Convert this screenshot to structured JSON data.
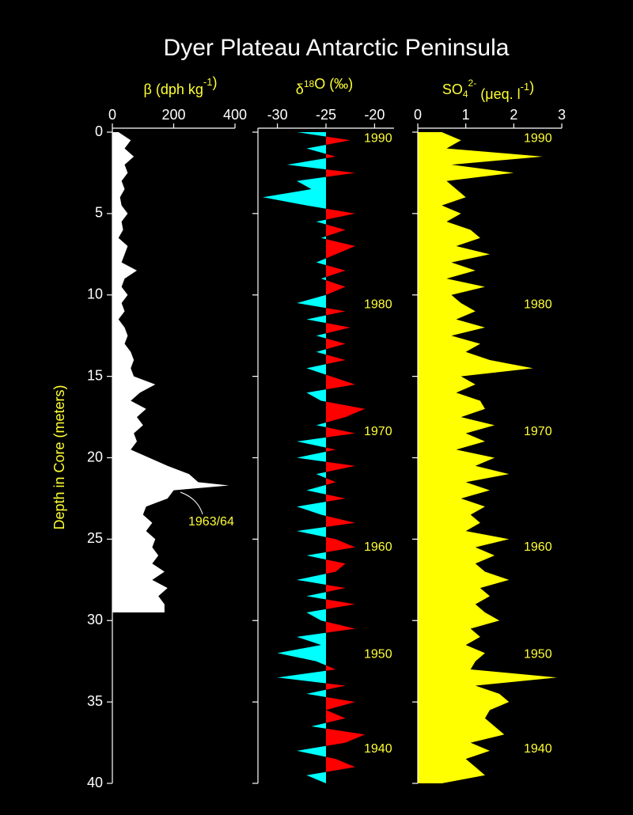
{
  "title": "Dyer Plateau Antarctic Peninsula",
  "chart_data": [
    {
      "type": "area",
      "orientation": "horizontal",
      "xlabel": [
        "β  (dph  kg",
        "-1",
        ")"
      ],
      "ylabel": "Depth in Core (meters)",
      "annotation": "1963/64",
      "xlim": [
        0,
        400
      ],
      "xticks": [
        0,
        200,
        400
      ],
      "ylim": [
        0,
        40
      ],
      "yticks": [
        0,
        5,
        10,
        15,
        20,
        25,
        30,
        35,
        40
      ],
      "color": "#ffffff",
      "y": [
        0,
        0.5,
        1,
        1.5,
        2,
        2.5,
        3,
        3.5,
        4,
        4.5,
        5,
        5.5,
        6,
        6.5,
        7,
        7.5,
        8,
        8.5,
        9,
        9.5,
        10,
        10.5,
        11,
        11.5,
        12,
        12.5,
        13,
        13.5,
        14,
        14.5,
        15,
        15.5,
        16,
        16.5,
        17,
        17.5,
        18,
        18.5,
        19,
        19.5,
        20,
        20.5,
        21,
        21.5,
        21.7,
        22,
        22.5,
        23,
        23.5,
        24,
        24.5,
        25,
        25.5,
        26,
        26.5,
        27,
        27.5,
        28,
        28.5,
        29,
        29.5
      ],
      "values": [
        20,
        60,
        40,
        70,
        40,
        50,
        30,
        40,
        25,
        30,
        50,
        30,
        35,
        20,
        50,
        40,
        30,
        80,
        40,
        30,
        50,
        30,
        40,
        20,
        40,
        50,
        40,
        60,
        70,
        60,
        70,
        140,
        90,
        60,
        110,
        80,
        100,
        70,
        80,
        60,
        120,
        180,
        250,
        280,
        380,
        200,
        180,
        110,
        100,
        130,
        110,
        140,
        130,
        150,
        130,
        170,
        130,
        180,
        150,
        170,
        170
      ]
    },
    {
      "type": "area",
      "orientation": "horizontal",
      "xlabel": [
        "δ",
        "18",
        "O (‰)"
      ],
      "xlim": [
        -32,
        -18
      ],
      "xticks": [
        -30,
        -25,
        -20
      ],
      "baseline": -25,
      "color_below": "#00ffff",
      "color_above": "#ff0000",
      "year_labels": [
        {
          "value": 0.4,
          "label": "1990"
        },
        {
          "value": 10.6,
          "label": "1980"
        },
        {
          "value": 18.4,
          "label": "1970"
        },
        {
          "value": 25.5,
          "label": "1960"
        },
        {
          "value": 32.1,
          "label": "1950"
        },
        {
          "value": 37.9,
          "label": "1940"
        }
      ],
      "y": [
        0,
        0.5,
        1,
        1.5,
        2,
        2.5,
        3,
        3.5,
        4,
        4.5,
        5,
        5.5,
        6,
        6.5,
        7,
        7.5,
        8,
        8.5,
        9,
        9.5,
        10,
        10.5,
        11,
        11.5,
        12,
        12.5,
        13,
        13.5,
        14,
        14.5,
        15,
        15.5,
        16,
        16.5,
        17,
        17.5,
        18,
        18.5,
        19,
        19.5,
        20,
        20.5,
        21,
        21.5,
        22,
        22.5,
        23,
        23.5,
        24,
        24.5,
        25,
        25.5,
        26,
        26.5,
        27,
        27.5,
        28,
        28.5,
        29,
        29.5,
        30,
        30.5,
        31,
        31.5,
        32,
        32.5,
        33,
        33.5,
        34,
        34.5,
        35,
        35.5,
        36,
        36.5,
        37,
        37.5,
        38,
        38.5,
        39,
        39.5,
        40
      ],
      "values": [
        -28,
        -22.5,
        -27,
        -24,
        -29,
        -22,
        -28,
        -26.5,
        -31.5,
        -27,
        -22,
        -26,
        -23,
        -25.5,
        -22,
        -24,
        -26,
        -23,
        -25.5,
        -23,
        -25,
        -28,
        -23,
        -27,
        -22.5,
        -26,
        -23,
        -26,
        -23,
        -27,
        -24.5,
        -22,
        -27,
        -25.5,
        -21,
        -23,
        -26,
        -22,
        -28,
        -24,
        -28,
        -22,
        -26,
        -24,
        -27,
        -23,
        -28,
        -25.5,
        -22,
        -28,
        -24,
        -22,
        -27,
        -23,
        -24,
        -28,
        -23,
        -27,
        -22,
        -27,
        -25.5,
        -22,
        -28,
        -25.5,
        -30,
        -26,
        -24,
        -30,
        -23,
        -27,
        -22,
        -25,
        -23,
        -26.5,
        -21,
        -23,
        -28,
        -24,
        -22,
        -27,
        -25
      ]
    },
    {
      "type": "area",
      "orientation": "horizontal",
      "xlabel": [
        "SO",
        "4",
        "2-",
        "  (μeq. l",
        "-1",
        ")"
      ],
      "xlim": [
        0,
        3
      ],
      "xticks": [
        0,
        1,
        2,
        3
      ],
      "color": "#ffff00",
      "year_labels": [
        {
          "value": 0.4,
          "label": "1990"
        },
        {
          "value": 10.6,
          "label": "1980"
        },
        {
          "value": 18.4,
          "label": "1970"
        },
        {
          "value": 25.5,
          "label": "1960"
        },
        {
          "value": 32.1,
          "label": "1950"
        },
        {
          "value": 37.9,
          "label": "1940"
        }
      ],
      "y": [
        0,
        0.5,
        1,
        1.5,
        2,
        2.5,
        3,
        3.5,
        4,
        4.5,
        5,
        5.5,
        6,
        6.5,
        7,
        7.5,
        8,
        8.5,
        9,
        9.5,
        10,
        10.5,
        11,
        11.5,
        12,
        12.5,
        13,
        13.5,
        14,
        14.5,
        15,
        15.5,
        16,
        16.5,
        17,
        17.5,
        18,
        18.5,
        19,
        19.5,
        20,
        20.5,
        21,
        21.5,
        22,
        22.5,
        23,
        23.5,
        24,
        24.5,
        25,
        25.5,
        26,
        26.5,
        27,
        27.5,
        28,
        28.5,
        29,
        29.5,
        30,
        30.5,
        31,
        31.5,
        32,
        32.5,
        33,
        33.5,
        34,
        34.5,
        35,
        35.5,
        36,
        36.5,
        37,
        37.5,
        38,
        38.5,
        39,
        39.5,
        40
      ],
      "values": [
        0.5,
        0.9,
        0.6,
        2.6,
        0.7,
        2.0,
        0.6,
        0.8,
        1.0,
        0.5,
        0.9,
        0.6,
        1.1,
        1.3,
        0.8,
        1.5,
        0.7,
        1.2,
        0.6,
        1.4,
        0.7,
        0.9,
        1.2,
        0.8,
        1.4,
        0.7,
        1.3,
        1.0,
        1.5,
        2.4,
        0.9,
        1.2,
        0.8,
        1.3,
        1.4,
        0.9,
        1.6,
        1.0,
        1.4,
        0.8,
        1.6,
        1.2,
        1.9,
        1.0,
        1.5,
        0.9,
        1.4,
        1.1,
        1.3,
        1.0,
        1.9,
        1.2,
        1.6,
        1.2,
        1.4,
        1.9,
        1.3,
        1.5,
        1.2,
        1.4,
        1.7,
        1.1,
        1.3,
        1.0,
        1.4,
        1.2,
        1.1,
        2.9,
        1.2,
        1.7,
        1.9,
        1.5,
        1.4,
        1.6,
        1.8,
        1.1,
        1.5,
        1.0,
        1.2,
        1.4,
        0.5
      ]
    }
  ]
}
